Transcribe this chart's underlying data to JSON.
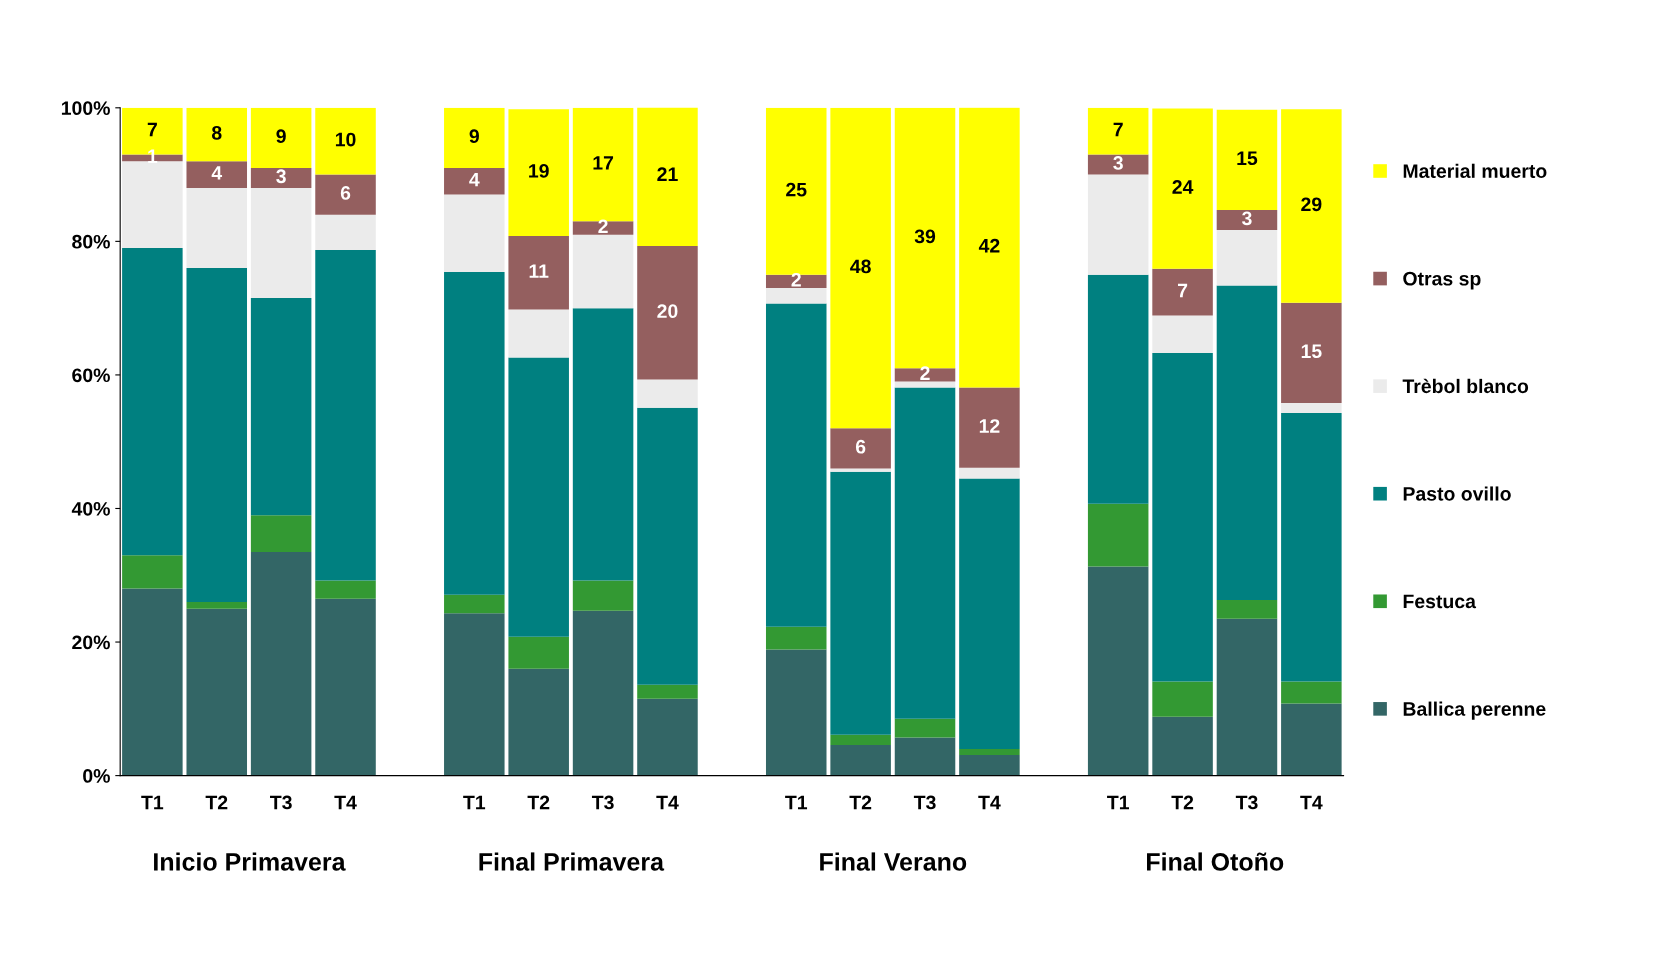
{
  "chart_data": {
    "type": "bar",
    "stacked": true,
    "categories": [
      "T1",
      "T2",
      "T3",
      "T4",
      null,
      "T1",
      "T2",
      "T3",
      "T4",
      null,
      "T1",
      "T2",
      "T3",
      "T4",
      null,
      "T1",
      "T2",
      "T3",
      "T4"
    ],
    "series": [
      {
        "name": "Ballica perenne",
        "color": "#336666",
        "values": [
          28,
          25,
          33.5,
          26.5,
          null,
          24.3,
          16,
          24.7,
          11.5,
          null,
          18.9,
          4.6,
          5.7,
          3.1,
          null,
          31.3,
          8.8,
          23.5,
          10.8
        ]
      },
      {
        "name": "Festuca",
        "color": "#339933",
        "values": [
          5,
          1,
          5.5,
          2.7,
          null,
          2.8,
          4.8,
          4.5,
          2.1,
          null,
          3.4,
          1.5,
          2.8,
          0.9,
          null,
          9.4,
          5.3,
          2.8,
          3.3
        ]
      },
      {
        "name": "Pasto ovillo",
        "color": "#008080",
        "values": [
          46,
          50,
          32.5,
          49.5,
          null,
          48.3,
          41.8,
          40.8,
          41.5,
          null,
          48.4,
          39.4,
          49.6,
          40.5,
          null,
          34.3,
          49.2,
          47.1,
          40.2
        ]
      },
      {
        "name": "Trèbol blanco",
        "color": "#ebebeb",
        "values": [
          13,
          12,
          16.5,
          5.3,
          null,
          11.6,
          7.2,
          11,
          4.2,
          null,
          2.3,
          0.5,
          0.9,
          1.6,
          null,
          15,
          5.6,
          8.3,
          1.5
        ]
      },
      {
        "name": "Otras sp",
        "color": "#945f5f",
        "values": [
          1,
          4,
          3,
          6,
          null,
          4,
          11,
          2,
          20,
          null,
          2,
          6,
          2,
          12,
          null,
          3,
          7,
          3,
          15
        ],
        "value_labels": [
          "1",
          "4",
          "3",
          "6",
          null,
          "4",
          "11",
          "2",
          "20",
          null,
          "2",
          "6",
          "2",
          "12",
          null,
          "3",
          "7",
          "3",
          "15"
        ]
      },
      {
        "name": "Material muerto",
        "color": "#ffff00",
        "values": [
          7,
          8,
          9,
          10,
          null,
          9,
          19,
          17,
          21,
          null,
          25,
          48,
          39,
          42,
          null,
          7,
          24,
          15,
          29
        ],
        "value_labels": [
          "7",
          "8",
          "9",
          "10",
          null,
          "9",
          "19",
          "17",
          "21",
          null,
          "25",
          "48",
          "39",
          "42",
          null,
          "7",
          "24",
          "15",
          "29"
        ]
      }
    ],
    "ylim": [
      0,
      100
    ],
    "yticks": [
      {
        "value": 0,
        "label": "0%"
      },
      {
        "value": 20,
        "label": "20%"
      },
      {
        "value": 40,
        "label": "40%"
      },
      {
        "value": 60,
        "label": "60%"
      },
      {
        "value": 80,
        "label": "80%"
      },
      {
        "value": 100,
        "label": "100%"
      }
    ],
    "annotations": [
      "Inicio Primavera",
      "Final Primavera",
      "Final Verano",
      "Final Otoño"
    ],
    "legend": "right",
    "grid": false
  }
}
